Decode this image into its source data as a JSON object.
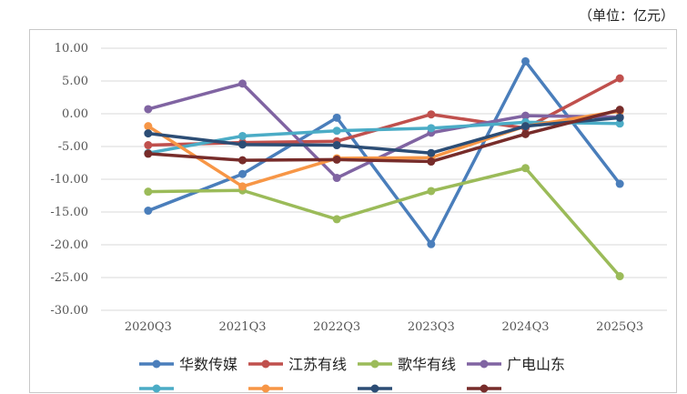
{
  "unit_label": "（单位：亿元）",
  "chart_data": {
    "type": "line",
    "title": "",
    "xlabel": "",
    "ylabel": "",
    "categories": [
      "2020Q3",
      "2021Q3",
      "2022Q3",
      "2023Q3",
      "2024Q3",
      "2025Q3"
    ],
    "ylim": [
      -30,
      10
    ],
    "yticks": [
      "10.00",
      "5.00",
      "0.00",
      "-5.00",
      "-10.00",
      "-15.00",
      "-20.00",
      "-25.00",
      "-30.00"
    ],
    "grid": "horizontal",
    "legend_placement": "bottom",
    "series": [
      {
        "name": "华数传媒",
        "color": "#4a7ebb",
        "values": [
          -14.8,
          -9.2,
          -0.6,
          -19.9,
          8.0,
          -10.7
        ]
      },
      {
        "name": "江苏有线",
        "color": "#c0504d",
        "values": [
          -4.8,
          -4.4,
          -4.2,
          -0.1,
          -2.2,
          5.4
        ]
      },
      {
        "name": "歌华有线",
        "color": "#9bbb59",
        "values": [
          -11.9,
          -11.7,
          -16.1,
          -11.8,
          -8.3,
          -24.8
        ]
      },
      {
        "name": "广电山东",
        "color": "#8064a2",
        "values": [
          0.7,
          4.6,
          -9.8,
          -2.9,
          -0.3,
          -0.5
        ]
      },
      {
        "name": "",
        "color": "#4bacc6",
        "values": [
          -6.0,
          -3.4,
          -2.6,
          -2.2,
          -1.3,
          -1.5
        ]
      },
      {
        "name": "",
        "color": "#f79646",
        "values": [
          -1.9,
          -11.1,
          -6.8,
          -6.7,
          -1.9,
          0.4
        ]
      },
      {
        "name": "",
        "color": "#2c4d75",
        "values": [
          -3.0,
          -4.7,
          -4.8,
          -6.0,
          -1.9,
          -0.6
        ]
      },
      {
        "name": "",
        "color": "#772c2a",
        "values": [
          -6.1,
          -7.1,
          -7.0,
          -7.3,
          -3.1,
          0.6
        ]
      }
    ]
  }
}
